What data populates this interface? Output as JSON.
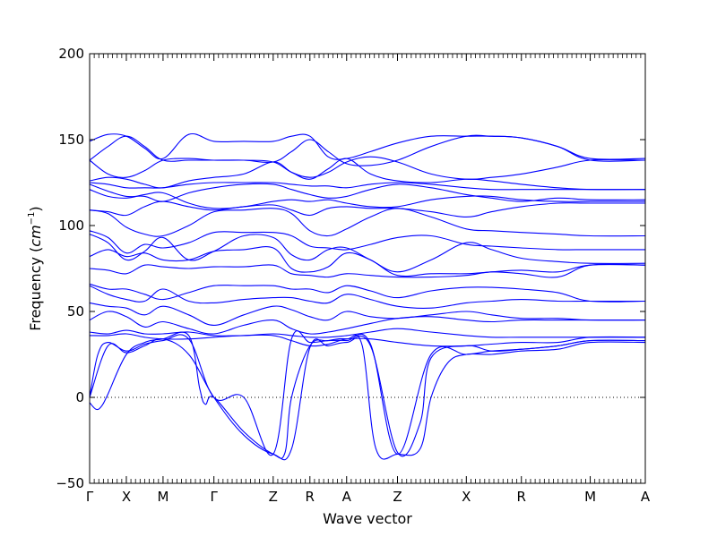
{
  "chart_data": {
    "type": "line",
    "title": "",
    "xlabel": "Wave vector",
    "ylabel": "Frequency",
    "ylabel_unit_base": "cm",
    "ylabel_unit_exp": "−1",
    "ylim": [
      -50,
      200
    ],
    "yticks": [
      -50,
      0,
      50,
      100,
      150,
      200
    ],
    "ytick_labels": [
      "−50",
      "0",
      "50",
      "100",
      "150",
      "200"
    ],
    "grid": false,
    "zero_line": true,
    "line_color": "#0000ff",
    "high_symmetry_points": [
      {
        "label": "Γ",
        "x": 0.0
      },
      {
        "label": "X",
        "x": 0.6667
      },
      {
        "label": "M",
        "x": 1.3333
      },
      {
        "label": "Γ",
        "x": 2.2569
      },
      {
        "label": "Z",
        "x": 3.3333
      },
      {
        "label": "R",
        "x": 4.0
      },
      {
        "label": "A",
        "x": 4.6667
      },
      {
        "label": "Z",
        "x": 5.5903
      },
      {
        "label": "X",
        "x": 6.8403
      },
      {
        "label": "R",
        "x": 7.8403
      },
      {
        "label": "M",
        "x": 9.0903
      },
      {
        "label": "A",
        "x": 10.0903
      }
    ],
    "xlim": [
      0,
      10.0903
    ],
    "series": [
      {
        "x": [
          0,
          0.333,
          0.667,
          1.0,
          1.333,
          1.8,
          2.257,
          2.8,
          3.333,
          3.667,
          4.0,
          4.333,
          4.667,
          5.1,
          5.59,
          6.2,
          6.84,
          7.3,
          7.84,
          8.5,
          9.09,
          10.09
        ],
        "y": [
          149,
          153,
          152,
          145,
          139,
          153,
          149,
          149,
          149,
          152,
          152,
          140,
          139,
          143,
          148,
          152,
          152,
          152,
          151,
          146,
          139,
          139
        ]
      },
      {
        "x": [
          0,
          0.333,
          0.667,
          1.0,
          1.333,
          1.8,
          2.257,
          2.8,
          3.333,
          3.667,
          4.0,
          4.333,
          4.667,
          5.1,
          5.59,
          6.2,
          6.84,
          7.3,
          7.84,
          8.5,
          9.09,
          10.09
        ],
        "y": [
          138,
          146,
          152,
          146,
          138,
          138,
          138,
          138,
          137,
          143,
          150,
          143,
          136,
          135,
          138,
          146,
          152,
          152,
          151,
          146,
          138,
          138
        ]
      },
      {
        "x": [
          0,
          0.333,
          0.667,
          1.0,
          1.333,
          1.8,
          2.257,
          2.8,
          3.333,
          3.667,
          4.0,
          4.333,
          4.667,
          5.1,
          5.59,
          6.2,
          6.84,
          7.3,
          7.84,
          8.5,
          9.09,
          10.09
        ],
        "y": [
          138,
          130,
          128,
          132,
          138,
          139,
          138,
          138,
          137,
          131,
          128,
          131,
          137,
          140,
          137,
          130,
          127,
          128,
          130,
          134,
          138,
          138
        ]
      },
      {
        "x": [
          0,
          0.333,
          0.667,
          1.0,
          1.333,
          1.8,
          2.257,
          2.8,
          3.333,
          3.667,
          4.0,
          4.333,
          4.667,
          5.1,
          5.59,
          6.2,
          6.84,
          7.3,
          7.84,
          8.5,
          9.09,
          10.09
        ],
        "y": [
          126,
          128,
          127,
          124,
          122,
          126,
          128,
          130,
          137,
          131,
          127,
          133,
          139,
          130,
          126,
          125,
          127,
          126,
          124,
          122,
          121,
          121
        ]
      },
      {
        "x": [
          0,
          0.333,
          0.667,
          1.0,
          1.333,
          1.8,
          2.257,
          2.8,
          3.333,
          3.667,
          4.0,
          4.333,
          4.667,
          5.1,
          5.59,
          6.2,
          6.84,
          7.3,
          7.84,
          8.5,
          9.09,
          10.09
        ],
        "y": [
          125,
          124,
          122,
          122,
          122,
          124,
          125,
          125,
          125,
          124,
          123,
          123,
          122,
          124,
          125,
          124,
          122,
          121,
          121,
          121,
          121,
          121
        ]
      },
      {
        "x": [
          0,
          0.333,
          0.667,
          1.0,
          1.333,
          1.8,
          2.257,
          2.8,
          3.333,
          3.667,
          4.0,
          4.333,
          4.667,
          5.1,
          5.59,
          6.2,
          6.84,
          7.3,
          7.84,
          8.5,
          9.09,
          10.09
        ],
        "y": [
          124,
          120,
          117,
          117,
          114,
          119,
          122,
          124,
          124,
          121,
          118,
          116,
          117,
          121,
          124,
          122,
          118,
          116,
          114,
          116,
          115,
          115
        ]
      },
      {
        "x": [
          0,
          0.333,
          0.667,
          1.0,
          1.333,
          1.8,
          2.257,
          2.8,
          3.333,
          3.667,
          4.0,
          4.333,
          4.667,
          5.1,
          5.59,
          6.2,
          6.84,
          7.3,
          7.84,
          8.5,
          9.09,
          10.09
        ],
        "y": [
          121,
          117,
          116,
          118,
          119,
          113,
          110,
          111,
          114,
          115,
          114,
          115,
          113,
          111,
          111,
          115,
          117,
          117,
          115,
          114,
          114,
          114
        ]
      },
      {
        "x": [
          0,
          0.333,
          0.667,
          1.0,
          1.333,
          1.8,
          2.257,
          2.8,
          3.333,
          3.667,
          4.0,
          4.333,
          4.667,
          5.1,
          5.59,
          6.2,
          6.84,
          7.3,
          7.84,
          8.5,
          9.09,
          10.09
        ],
        "y": [
          109,
          108,
          106,
          111,
          114,
          111,
          109,
          111,
          112,
          109,
          106,
          110,
          111,
          110,
          110,
          108,
          105,
          108,
          111,
          113,
          113,
          113
        ]
      },
      {
        "x": [
          0,
          0.333,
          0.667,
          1.0,
          1.333,
          1.8,
          2.257,
          2.8,
          3.333,
          3.667,
          4.0,
          4.333,
          4.667,
          5.1,
          5.59,
          6.2,
          6.84,
          7.3,
          7.84,
          8.5,
          9.09,
          10.09
        ],
        "y": [
          109,
          107,
          99,
          95,
          94,
          100,
          108,
          109,
          110,
          107,
          97,
          94,
          98,
          105,
          110,
          105,
          98,
          97,
          96,
          95,
          94,
          94
        ]
      },
      {
        "x": [
          0,
          0.333,
          0.667,
          1.0,
          1.333,
          1.8,
          2.257,
          2.8,
          3.333,
          3.667,
          4.0,
          4.333,
          4.667,
          5.1,
          5.59,
          6.2,
          6.84,
          7.3,
          7.84,
          8.5,
          9.09,
          10.09
        ],
        "y": [
          97,
          93,
          84,
          89,
          87,
          90,
          96,
          96,
          96,
          94,
          88,
          87,
          86,
          89,
          93,
          94,
          89,
          88,
          87,
          86,
          86,
          86
        ]
      },
      {
        "x": [
          0,
          0.333,
          0.667,
          1.0,
          1.333,
          1.8,
          2.257,
          2.8,
          3.333,
          3.667,
          4.0,
          4.333,
          4.667,
          5.1,
          5.59,
          6.2,
          6.84,
          7.3,
          7.84,
          8.5,
          9.09,
          10.09
        ],
        "y": [
          95,
          90,
          80,
          85,
          93,
          80,
          85,
          94,
          93,
          83,
          80,
          86,
          87,
          80,
          73,
          80,
          90,
          86,
          81,
          79,
          78,
          78
        ]
      },
      {
        "x": [
          0,
          0.333,
          0.667,
          1.0,
          1.333,
          1.8,
          2.257,
          2.8,
          3.333,
          3.667,
          4.0,
          4.333,
          4.667,
          5.1,
          5.59,
          6.2,
          6.84,
          7.3,
          7.84,
          8.5,
          9.09,
          10.09
        ],
        "y": [
          82,
          86,
          82,
          84,
          80,
          80,
          85,
          86,
          87,
          75,
          73,
          76,
          84,
          80,
          71,
          72,
          72,
          73,
          74,
          73,
          77,
          77
        ]
      },
      {
        "x": [
          0,
          0.333,
          0.667,
          1.0,
          1.333,
          1.8,
          2.257,
          2.8,
          3.333,
          3.667,
          4.0,
          4.333,
          4.667,
          5.1,
          5.59,
          6.2,
          6.84,
          7.3,
          7.84,
          8.5,
          9.09,
          10.09
        ],
        "y": [
          75,
          74,
          72,
          77,
          76,
          75,
          76,
          76,
          77,
          72,
          71,
          70,
          72,
          71,
          70,
          70,
          71,
          73,
          72,
          70,
          77,
          77
        ]
      },
      {
        "x": [
          0,
          0.333,
          0.667,
          1.0,
          1.333,
          1.8,
          2.257,
          2.8,
          3.333,
          3.667,
          4.0,
          4.333,
          4.667,
          5.1,
          5.59,
          6.2,
          6.84,
          7.3,
          7.84,
          8.5,
          9.09,
          10.09
        ],
        "y": [
          66,
          63,
          63,
          60,
          57,
          61,
          65,
          65,
          65,
          63,
          63,
          61,
          65,
          62,
          58,
          62,
          64,
          64,
          63,
          61,
          56,
          56
        ]
      },
      {
        "x": [
          0,
          0.333,
          0.667,
          1.0,
          1.333,
          1.8,
          2.257,
          2.8,
          3.333,
          3.667,
          4.0,
          4.333,
          4.667,
          5.1,
          5.59,
          6.2,
          6.84,
          7.3,
          7.84,
          8.5,
          9.09,
          10.09
        ],
        "y": [
          65,
          60,
          57,
          56,
          63,
          56,
          55,
          57,
          58,
          58,
          56,
          55,
          60,
          57,
          53,
          52,
          55,
          56,
          57,
          56,
          56,
          56
        ]
      },
      {
        "x": [
          0,
          0.333,
          0.667,
          1.0,
          1.333,
          1.8,
          2.257,
          2.8,
          3.333,
          3.667,
          4.0,
          4.333,
          4.667,
          5.1,
          5.59,
          6.2,
          6.84,
          7.3,
          7.84,
          8.5,
          9.09,
          10.09
        ],
        "y": [
          55,
          53,
          52,
          48,
          53,
          48,
          42,
          48,
          53,
          51,
          47,
          45,
          50,
          47,
          46,
          48,
          50,
          48,
          46,
          46,
          45,
          45
        ]
      },
      {
        "x": [
          0,
          0.333,
          0.667,
          1.0,
          1.333,
          1.8,
          2.257,
          2.8,
          3.333,
          3.667,
          4.0,
          4.333,
          4.667,
          5.1,
          5.59,
          6.2,
          6.84,
          7.3,
          7.84,
          8.5,
          9.09,
          10.09
        ],
        "y": [
          45,
          50,
          47,
          41,
          44,
          40,
          37,
          42,
          45,
          40,
          37,
          38,
          40,
          43,
          46,
          47,
          45,
          44,
          45,
          45,
          45,
          45
        ]
      },
      {
        "x": [
          0,
          0.333,
          0.667,
          1.0,
          1.333,
          1.8,
          2.257,
          2.8,
          3.333,
          3.667,
          4.0,
          4.333,
          4.667,
          5.1,
          5.59,
          6.2,
          6.84,
          7.3,
          7.84,
          8.5,
          9.09,
          10.09
        ],
        "y": [
          38,
          37,
          39,
          37,
          37,
          38,
          36,
          36,
          37,
          36,
          35,
          35,
          36,
          38,
          40,
          38,
          36,
          35,
          35,
          35,
          35,
          35
        ]
      },
      {
        "x": [
          0,
          0.333,
          0.667,
          1.0,
          1.333,
          1.8,
          2.257,
          2.8,
          3.333,
          3.667,
          4.0,
          4.333,
          4.667,
          5.1,
          5.59,
          6.2,
          6.84,
          7.3,
          7.84,
          8.5,
          9.09,
          10.09
        ],
        "y": [
          36,
          36,
          37,
          35,
          34,
          34,
          35,
          36,
          36,
          33,
          30,
          31,
          34,
          34,
          32,
          30,
          30,
          31,
          32,
          32,
          35,
          35
        ]
      },
      {
        "x": [
          0,
          0.15,
          0.333,
          0.667,
          1.0,
          1.333,
          1.8,
          2.257,
          2.8,
          3.333,
          3.667,
          4.0,
          4.333,
          4.667,
          5.1,
          5.59,
          6.2,
          6.84,
          7.3,
          7.84,
          8.5,
          9.09,
          10.09
        ],
        "y": [
          0,
          25,
          32,
          27,
          31,
          33,
          34,
          0,
          0,
          -33,
          34,
          32,
          33,
          33,
          31,
          -33,
          25,
          25,
          27,
          28,
          30,
          33,
          33
        ]
      },
      {
        "x": [
          0,
          0.12,
          0.22,
          0.333,
          0.667,
          1.0,
          1.333,
          1.8,
          2.0,
          2.1,
          2.257,
          2.8,
          3.333,
          3.55,
          3.667,
          4.0,
          4.333,
          4.667,
          4.95,
          5.2,
          5.59,
          6.0,
          6.2,
          6.5,
          6.84,
          7.3,
          7.84,
          8.5,
          9.09,
          10.09
        ],
        "y": [
          -3,
          -7,
          -5,
          2,
          25,
          32,
          34,
          36,
          5,
          -4,
          0,
          -20,
          -33,
          -32,
          0,
          30,
          33,
          34,
          30,
          -30,
          -33,
          -30,
          0,
          20,
          25,
          25,
          27,
          28,
          32,
          32
        ]
      },
      {
        "x": [
          0,
          0.333,
          0.667,
          1.0,
          1.333,
          1.8,
          2.257,
          2.8,
          3.333,
          3.667,
          4.0,
          4.333,
          4.667,
          5.1,
          5.59,
          6.0,
          6.2,
          6.84,
          7.3,
          7.84,
          8.5,
          9.09,
          10.09
        ],
        "y": [
          0,
          30,
          26,
          30,
          34,
          25,
          0,
          -22,
          -33,
          -30,
          29,
          30,
          32,
          30,
          -32,
          -15,
          23,
          30,
          27,
          28,
          30,
          33,
          33
        ]
      }
    ]
  }
}
